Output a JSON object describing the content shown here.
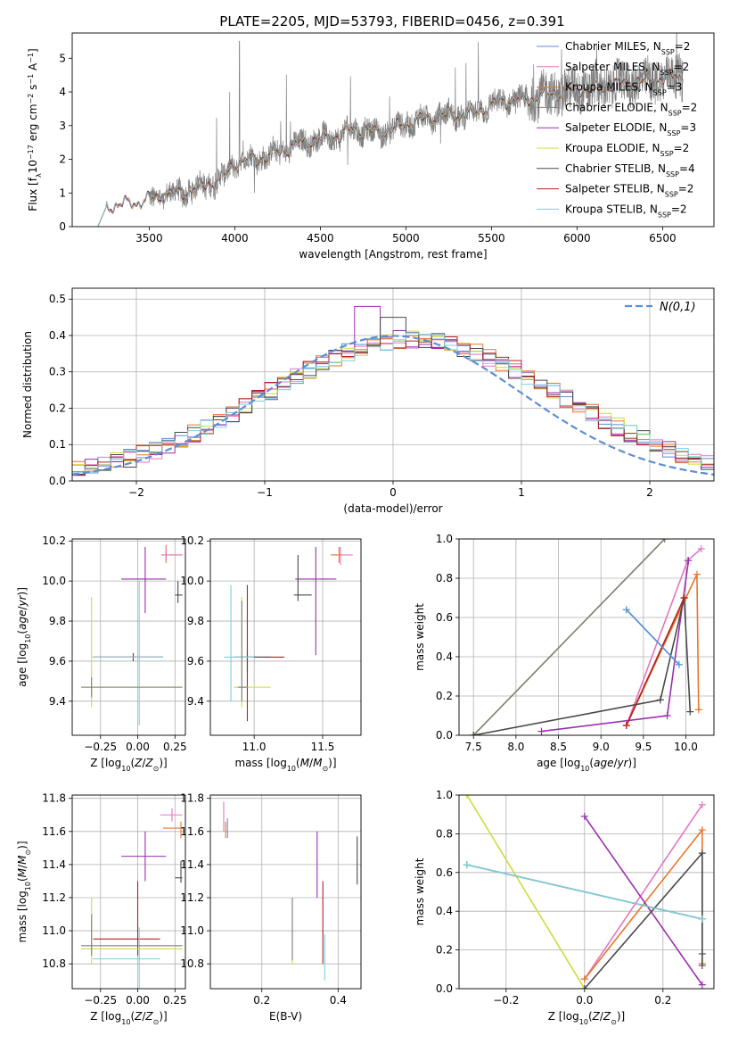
{
  "title": "PLATE=2205, MJD=53793, FIBERID=0456, z=0.391",
  "colors": {
    "chab_miles": "#5b8fd6",
    "salp_miles": "#e377c2",
    "kroupa_miles": "#e8762b",
    "chab_elodie": "#7f7f7f",
    "salp_elodie": "#9b2fae",
    "kroupa_elodie": "#cddc39",
    "chab_stelib": "#4a4a4a",
    "salp_stelib": "#b22222",
    "kroupa_stelib": "#7ecfd9",
    "gauss": "#5b8fd6"
  },
  "legend": [
    {
      "name": "Chabrier MILES, N",
      "sub": "SSP",
      "suffix": "=2",
      "color_key": "chab_miles"
    },
    {
      "name": "Salpeter MILES, N",
      "sub": "SSP",
      "suffix": "=2",
      "color_key": "salp_miles"
    },
    {
      "name": "Kroupa MILES, N",
      "sub": "SSP",
      "suffix": "=3",
      "color_key": "kroupa_miles"
    },
    {
      "name": "Chabrier ELODIE, N",
      "sub": "SSP",
      "suffix": "=2",
      "color_key": "chab_elodie"
    },
    {
      "name": "Salpeter ELODIE, N",
      "sub": "SSP",
      "suffix": "=3",
      "color_key": "salp_elodie"
    },
    {
      "name": "Kroupa ELODIE, N",
      "sub": "SSP",
      "suffix": "=2",
      "color_key": "kroupa_elodie"
    },
    {
      "name": "Chabrier STELIB, N",
      "sub": "SSP",
      "suffix": "=4",
      "color_key": "chab_stelib"
    },
    {
      "name": "Salpeter STELIB, N",
      "sub": "SSP",
      "suffix": "=2",
      "color_key": "salp_stelib"
    },
    {
      "name": "Kroupa STELIB, N",
      "sub": "SSP",
      "suffix": "=2",
      "color_key": "kroupa_stelib"
    }
  ],
  "chart_data": [
    {
      "id": "spectrum",
      "type": "line",
      "xlabel": "wavelength [Angstrom, rest frame]",
      "ylabel": "Flux [f_λ 10^-17 erg cm^-2 s^-1 A^-1]",
      "xlim": [
        3050,
        6800
      ],
      "ylim": [
        0,
        5.75
      ],
      "xticks": [
        3500,
        4000,
        4500,
        5000,
        5500,
        6000,
        6500
      ],
      "yticks": [
        0,
        1,
        2,
        3,
        4,
        5
      ],
      "continuum": {
        "x": [
          3200,
          3250,
          3400,
          3500,
          3600,
          3700,
          3800,
          3900,
          3950,
          4000,
          4100,
          4200,
          4300,
          4400,
          4500,
          4600,
          4700,
          4800,
          4900,
          5000,
          5100,
          5200,
          5300,
          5400,
          5500,
          5600,
          5700,
          5800,
          5900,
          6000,
          6100,
          6200,
          6300,
          6400,
          6500,
          6600
        ],
        "y": [
          0.0,
          0.6,
          0.7,
          0.8,
          0.95,
          1.0,
          1.2,
          1.35,
          1.55,
          1.9,
          2.0,
          2.1,
          2.3,
          2.5,
          2.6,
          2.7,
          2.9,
          2.8,
          2.85,
          3.05,
          3.2,
          3.3,
          3.3,
          3.4,
          3.6,
          3.75,
          3.75,
          3.9,
          4.0,
          4.1,
          4.1,
          4.2,
          4.3,
          4.3,
          4.4,
          4.5
        ]
      }
    },
    {
      "id": "residuals",
      "type": "line",
      "xlabel": "(data-model)/error",
      "ylabel": "Normed distribution",
      "xlim": [
        -2.5,
        2.5
      ],
      "ylim": [
        0,
        0.53
      ],
      "xticks": [
        -2,
        -1,
        0,
        1,
        2
      ],
      "yticks": [
        0.0,
        0.1,
        0.2,
        0.3,
        0.4,
        0.5
      ],
      "gaussian_label": "N(0,1)",
      "bin_width": 0.1
    },
    {
      "id": "age_vs_Z",
      "type": "scatter",
      "xlabel": "Z [log10(Z/Z⊙)]",
      "ylabel": "age [log10(age/yr)]",
      "xlim": [
        -0.44,
        0.32
      ],
      "ylim": [
        9.23,
        10.21
      ],
      "xticks": [
        -0.25,
        0.0,
        0.25
      ],
      "yticks": [
        9.4,
        9.6,
        9.8,
        10.0,
        10.2
      ],
      "points": [
        {
          "c": "kroupa_miles",
          "x": 0.19,
          "y": 10.13,
          "ex": [
            0.16,
            0.3
          ],
          "ey": [
            10.09,
            10.18
          ]
        },
        {
          "c": "salp_miles",
          "x": 0.19,
          "y": 10.13,
          "ex": [
            0.17,
            0.3
          ],
          "ey": [
            10.1,
            10.17
          ]
        },
        {
          "c": "salp_elodie",
          "x": 0.05,
          "y": 10.01,
          "ex": [
            -0.11,
            0.19
          ],
          "ey": [
            9.84,
            10.17
          ]
        },
        {
          "c": "chab_stelib",
          "x": 0.27,
          "y": 9.93,
          "ex": [
            0.25,
            0.3
          ],
          "ey": [
            9.89,
            10.0
          ]
        },
        {
          "c": "chab_stelib",
          "x": -0.03,
          "y": 9.62,
          "ex": [
            -0.3,
            0.17
          ],
          "ey": [
            9.6,
            9.64
          ]
        },
        {
          "c": "salp_stelib",
          "x": -0.03,
          "y": 9.62,
          "ex": [
            -0.3,
            0.17
          ],
          "ey": [
            9.61,
            9.63
          ]
        },
        {
          "c": "kroupa_stelib",
          "x": 0.01,
          "y": 9.62,
          "ex": [
            -0.3,
            0.17
          ],
          "ey": [
            9.28,
            10.0
          ]
        },
        {
          "c": "kroupa_elodie",
          "x": -0.31,
          "y": 9.47,
          "ex": [
            -0.38,
            0.3
          ],
          "ey": [
            9.37,
            9.92
          ]
        },
        {
          "c": "chab_elodie",
          "x": -0.31,
          "y": 9.47,
          "ex": [
            -0.38,
            0.3
          ],
          "ey": [
            9.42,
            9.52
          ]
        }
      ]
    },
    {
      "id": "age_vs_mass",
      "type": "scatter",
      "xlabel": "mass [log10(M/M⊙)]",
      "ylabel": "",
      "xlim": [
        10.68,
        11.78
      ],
      "ylim": [
        9.23,
        10.21
      ],
      "xticks": [
        11.0,
        11.5
      ],
      "yticks": [
        9.4,
        9.6,
        9.8,
        10.0,
        10.2
      ],
      "points": [
        {
          "c": "salp_miles",
          "x": 11.63,
          "y": 10.13,
          "ex": [
            11.56,
            11.72
          ],
          "ey": [
            10.08,
            10.17
          ]
        },
        {
          "c": "kroupa_miles",
          "x": 11.62,
          "y": 10.13,
          "ex": [
            11.56,
            11.64
          ],
          "ey": [
            10.09,
            10.17
          ]
        },
        {
          "c": "salp_elodie",
          "x": 11.45,
          "y": 10.01,
          "ex": [
            11.3,
            11.6
          ],
          "ey": [
            9.63,
            10.17
          ]
        },
        {
          "c": "chab_stelib",
          "x": 11.32,
          "y": 9.93,
          "ex": [
            11.29,
            11.42
          ],
          "ey": [
            9.9,
            10.13
          ]
        },
        {
          "c": "salp_stelib",
          "x": 10.95,
          "y": 9.62,
          "ex": [
            10.85,
            11.22
          ],
          "ey": [
            9.3,
            9.98
          ]
        },
        {
          "c": "chab_stelib",
          "x": 10.95,
          "y": 9.62,
          "ex": [
            10.85,
            11.12
          ],
          "ey": [
            9.55,
            9.65
          ]
        },
        {
          "c": "kroupa_stelib",
          "x": 10.83,
          "y": 9.62,
          "ex": [
            10.78,
            11.0
          ],
          "ey": [
            9.4,
            9.98
          ]
        },
        {
          "c": "kroupa_elodie",
          "x": 10.91,
          "y": 9.47,
          "ex": [
            10.85,
            11.12
          ],
          "ey": [
            9.37,
            9.92
          ]
        },
        {
          "c": "chab_elodie",
          "x": 10.91,
          "y": 9.47,
          "ex": [
            10.88,
            10.95
          ],
          "ey": [
            9.4,
            9.9
          ]
        }
      ]
    },
    {
      "id": "weight_vs_age",
      "type": "line",
      "xlabel": "age [log10(age/yr)]",
      "ylabel": "mass weight",
      "xlim": [
        7.33,
        10.33
      ],
      "ylim": [
        0,
        1
      ],
      "xticks": [
        7.5,
        8.0,
        8.5,
        9.0,
        9.5,
        10.0
      ],
      "yticks": [
        0.0,
        0.2,
        0.4,
        0.6,
        0.8,
        1.0
      ],
      "series": [
        {
          "c": "kroupa_elodie",
          "x": [
            7.5,
            9.75
          ],
          "y": [
            0.0,
            1.0
          ]
        },
        {
          "c": "chab_elodie",
          "x": [
            7.5,
            9.75
          ],
          "y": [
            0.0,
            1.0
          ]
        },
        {
          "c": "salp_miles",
          "x": [
            9.3,
            10.02,
            10.18
          ],
          "y": [
            0.05,
            0.89,
            0.95
          ]
        },
        {
          "c": "kroupa_miles",
          "x": [
            9.3,
            10.13,
            10.15
          ],
          "y": [
            0.05,
            0.82,
            0.13
          ]
        },
        {
          "c": "salp_elodie",
          "x": [
            8.3,
            9.78,
            10.03
          ],
          "y": [
            0.02,
            0.1,
            0.89
          ]
        },
        {
          "c": "chab_stelib",
          "x": [
            7.5,
            9.7,
            9.98,
            10.05
          ],
          "y": [
            0.0,
            0.18,
            0.7,
            0.12
          ]
        },
        {
          "c": "salp_stelib",
          "x": [
            9.3,
            9.98
          ],
          "y": [
            0.05,
            0.7
          ]
        },
        {
          "c": "kroupa_stelib",
          "x": [
            9.3,
            9.92
          ],
          "y": [
            0.64,
            0.36
          ]
        },
        {
          "c": "chab_miles",
          "x": [
            9.3,
            9.92
          ],
          "y": [
            0.64,
            0.36
          ]
        }
      ]
    },
    {
      "id": "mass_vs_Z",
      "type": "scatter",
      "xlabel": "Z [log10(Z/Z⊙)]",
      "ylabel": "mass [log10(M/M⊙)]",
      "xlim": [
        -0.44,
        0.32
      ],
      "ylim": [
        10.65,
        11.82
      ],
      "xticks": [
        -0.25,
        0.0,
        0.25
      ],
      "yticks": [
        10.8,
        11.0,
        11.2,
        11.4,
        11.6,
        11.8
      ],
      "points": [
        {
          "c": "salp_miles",
          "x": 0.23,
          "y": 11.7,
          "ex": [
            0.15,
            0.3
          ],
          "ey": [
            11.66,
            11.74
          ]
        },
        {
          "c": "kroupa_miles",
          "x": 0.29,
          "y": 11.62,
          "ex": [
            0.17,
            0.3
          ],
          "ey": [
            11.56,
            11.66
          ]
        },
        {
          "c": "salp_elodie",
          "x": 0.05,
          "y": 11.45,
          "ex": [
            -0.11,
            0.19
          ],
          "ey": [
            11.3,
            11.6
          ]
        },
        {
          "c": "chab_stelib",
          "x": 0.29,
          "y": 11.32,
          "ex": [
            0.25,
            0.3
          ],
          "ey": [
            11.29,
            11.42
          ]
        },
        {
          "c": "salp_stelib",
          "x": 0.0,
          "y": 10.95,
          "ex": [
            -0.3,
            0.15
          ],
          "ey": [
            10.85,
            11.3
          ]
        },
        {
          "c": "kroupa_stelib",
          "x": 0.01,
          "y": 10.83,
          "ex": [
            -0.3,
            0.15
          ],
          "ey": [
            10.65,
            11.02
          ]
        },
        {
          "c": "kroupa_elodie",
          "x": -0.31,
          "y": 10.89,
          "ex": [
            -0.38,
            0.3
          ],
          "ey": [
            10.8,
            11.2
          ]
        },
        {
          "c": "chab_elodie",
          "x": -0.31,
          "y": 10.91,
          "ex": [
            -0.38,
            0.3
          ],
          "ey": [
            10.85,
            11.1
          ]
        }
      ]
    },
    {
      "id": "mass_vs_ebv",
      "type": "scatter",
      "xlabel": "E(B-V)",
      "ylabel": "",
      "xlim": [
        0.065,
        0.46
      ],
      "ylim": [
        10.65,
        11.82
      ],
      "xticks": [
        0.2,
        0.4
      ],
      "yticks": [
        10.8,
        11.0,
        11.2,
        11.4,
        11.6,
        11.8
      ],
      "points": [
        {
          "c": "salp_miles",
          "x": 0.1,
          "y": 11.7,
          "ey": [
            11.6,
            11.78
          ]
        },
        {
          "c": "kroupa_miles",
          "x": 0.105,
          "y": 11.62,
          "ey": [
            11.56,
            11.66
          ]
        },
        {
          "c": "chab_miles",
          "x": 0.11,
          "y": 11.62,
          "ey": [
            11.56,
            11.68
          ]
        },
        {
          "c": "salp_elodie",
          "x": 0.345,
          "y": 11.45,
          "ey": [
            11.2,
            11.6
          ]
        },
        {
          "c": "chab_stelib",
          "x": 0.45,
          "y": 11.32,
          "ey": [
            11.28,
            11.57
          ]
        },
        {
          "c": "salp_stelib",
          "x": 0.36,
          "y": 10.95,
          "ey": [
            10.8,
            11.3
          ]
        },
        {
          "c": "kroupa_stelib",
          "x": 0.365,
          "y": 10.83,
          "ey": [
            10.7,
            10.98
          ]
        },
        {
          "c": "kroupa_elodie",
          "x": 0.28,
          "y": 10.89,
          "ey": [
            10.8,
            11.2
          ]
        },
        {
          "c": "chab_elodie",
          "x": 0.28,
          "y": 10.91,
          "ey": [
            10.82,
            11.2
          ]
        }
      ]
    },
    {
      "id": "weight_vs_Z",
      "type": "line",
      "xlabel": "Z [log10(Z/Z⊙)]",
      "ylabel": "mass weight",
      "xlim": [
        -0.32,
        0.33
      ],
      "ylim": [
        0,
        1
      ],
      "xticks": [
        -0.2,
        0.0,
        0.2
      ],
      "yticks": [
        0.0,
        0.2,
        0.4,
        0.6,
        0.8,
        1.0
      ],
      "series": [
        {
          "c": "kroupa_elodie",
          "x": [
            -0.3,
            0.0
          ],
          "y": [
            1.0,
            0.0
          ]
        },
        {
          "c": "salp_miles",
          "x": [
            0.0,
            0.3
          ],
          "y": [
            0.05,
            0.95
          ]
        },
        {
          "c": "kroupa_miles",
          "x": [
            0.0,
            0.3,
            0.3
          ],
          "y": [
            0.05,
            0.82,
            0.13
          ]
        },
        {
          "c": "salp_elodie",
          "x": [
            0.0,
            0.3
          ],
          "y": [
            0.89,
            0.02
          ]
        },
        {
          "c": "chab_stelib",
          "x": [
            0.0,
            0.3,
            0.3,
            0.3
          ],
          "y": [
            0.0,
            0.7,
            0.18,
            0.12
          ]
        },
        {
          "c": "chab_stelib",
          "x": [
            -0.3,
            0.3
          ],
          "y": [
            0.64,
            0.36
          ]
        },
        {
          "c": "kroupa_stelib",
          "x": [
            -0.3,
            0.3
          ],
          "y": [
            0.64,
            0.36
          ]
        }
      ]
    }
  ]
}
